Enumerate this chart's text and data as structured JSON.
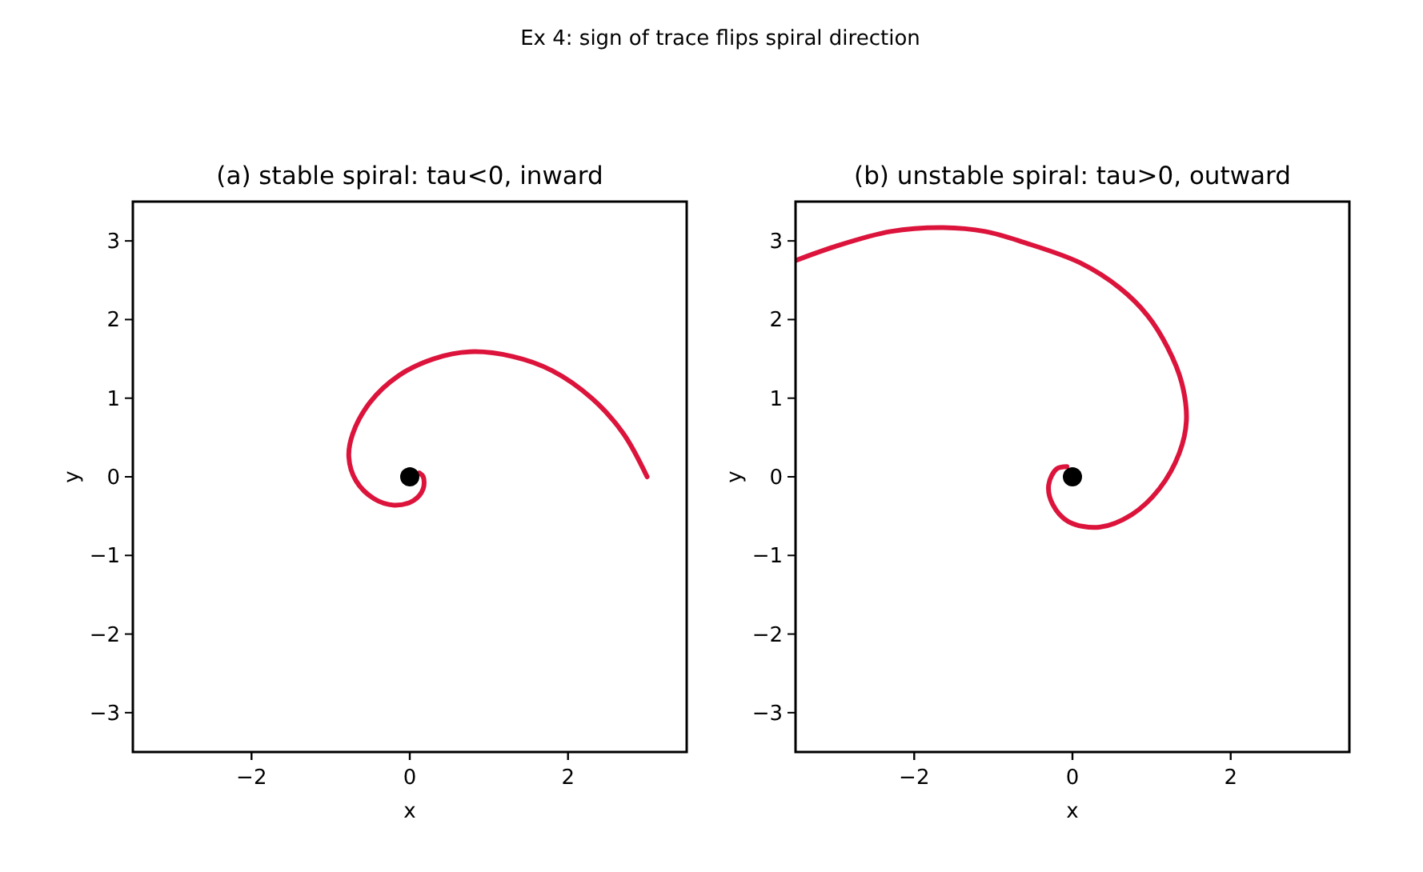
{
  "chart_data": [
    {
      "type": "line",
      "title": "(a) stable spiral: tau<0, inward",
      "xlabel": "x",
      "ylabel": "y",
      "annotations": [
        "Ex 4: sign of trace flips spiral direction"
      ],
      "xlim": [
        -3.5,
        3.5
      ],
      "ylim": [
        -3.5,
        3.5
      ],
      "xticks": [
        -2,
        0,
        2
      ],
      "yticks": [
        -3,
        -2,
        -1,
        0,
        1,
        2,
        3
      ],
      "grid": false,
      "series": [
        {
          "color": "#dc143c",
          "marker": "none",
          "x": [
            3.0,
            2.7,
            2.3,
            1.8,
            1.3,
            0.76,
            0.3,
            -0.15,
            -0.5,
            -0.72,
            -0.77,
            -0.68,
            -0.45,
            -0.2,
            0.05,
            0.17,
            0.17,
            0.12
          ],
          "values": [
            0,
            0.55,
            1.0,
            1.35,
            1.53,
            1.59,
            1.5,
            1.28,
            0.95,
            0.55,
            0.25,
            -0.05,
            -0.28,
            -0.36,
            -0.3,
            -0.15,
            0.0,
            0.05
          ]
        },
        {
          "type": "scatter",
          "color": "#000000",
          "marker": "circle",
          "x": [
            0
          ],
          "values": [
            0
          ]
        }
      ]
    },
    {
      "type": "line",
      "title": "(b) unstable spiral: tau>0, outward",
      "xlabel": "x",
      "ylabel": "y",
      "xlim": [
        -3.5,
        3.5
      ],
      "ylim": [
        -3.5,
        3.5
      ],
      "xticks": [
        -2,
        0,
        2
      ],
      "yticks": [
        -3,
        -2,
        -1,
        0,
        1,
        2,
        3
      ],
      "grid": false,
      "series": [
        {
          "color": "#dc143c",
          "marker": "none",
          "x": [
            -0.07,
            -0.2,
            -0.3,
            -0.25,
            -0.05,
            0.34,
            0.75,
            1.1,
            1.35,
            1.44,
            1.38,
            1.2,
            0.95,
            0.6,
            0.1,
            -0.61,
            -1.1,
            -1.63,
            -2.3,
            -3.0,
            -3.5
          ],
          "values": [
            0.13,
            0.1,
            -0.1,
            -0.35,
            -0.57,
            -0.64,
            -0.48,
            -0.15,
            0.3,
            0.71,
            1.2,
            1.65,
            2.05,
            2.4,
            2.72,
            2.98,
            3.12,
            3.17,
            3.12,
            2.93,
            2.75
          ]
        },
        {
          "type": "scatter",
          "color": "#000000",
          "marker": "circle",
          "x": [
            0
          ],
          "values": [
            0
          ]
        }
      ]
    }
  ]
}
